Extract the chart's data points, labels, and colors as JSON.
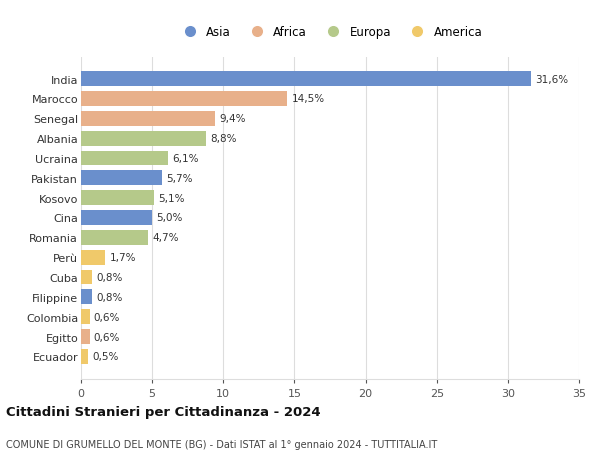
{
  "countries": [
    "India",
    "Marocco",
    "Senegal",
    "Albania",
    "Ucraina",
    "Pakistan",
    "Kosovo",
    "Cina",
    "Romania",
    "Perù",
    "Cuba",
    "Filippine",
    "Colombia",
    "Egitto",
    "Ecuador"
  ],
  "values": [
    31.6,
    14.5,
    9.4,
    8.8,
    6.1,
    5.7,
    5.1,
    5.0,
    4.7,
    1.7,
    0.8,
    0.8,
    0.6,
    0.6,
    0.5
  ],
  "labels": [
    "31,6%",
    "14,5%",
    "9,4%",
    "8,8%",
    "6,1%",
    "5,7%",
    "5,1%",
    "5,0%",
    "4,7%",
    "1,7%",
    "0,8%",
    "0,8%",
    "0,6%",
    "0,6%",
    "0,5%"
  ],
  "continents": [
    "Asia",
    "Africa",
    "Africa",
    "Europa",
    "Europa",
    "Asia",
    "Europa",
    "Asia",
    "Europa",
    "America",
    "America",
    "Asia",
    "America",
    "Africa",
    "America"
  ],
  "continent_colors": {
    "Asia": "#6a8fcc",
    "Africa": "#e8b08a",
    "Europa": "#b5c98a",
    "America": "#f0c96a"
  },
  "legend_order": [
    "Asia",
    "Africa",
    "Europa",
    "America"
  ],
  "title": "Cittadini Stranieri per Cittadinanza - 2024",
  "subtitle": "COMUNE DI GRUMELLO DEL MONTE (BG) - Dati ISTAT al 1° gennaio 2024 - TUTTITALIA.IT",
  "xlim": [
    0,
    35
  ],
  "xticks": [
    0,
    5,
    10,
    15,
    20,
    25,
    30,
    35
  ],
  "background_color": "#ffffff",
  "grid_color": "#dddddd",
  "bar_height": 0.75
}
